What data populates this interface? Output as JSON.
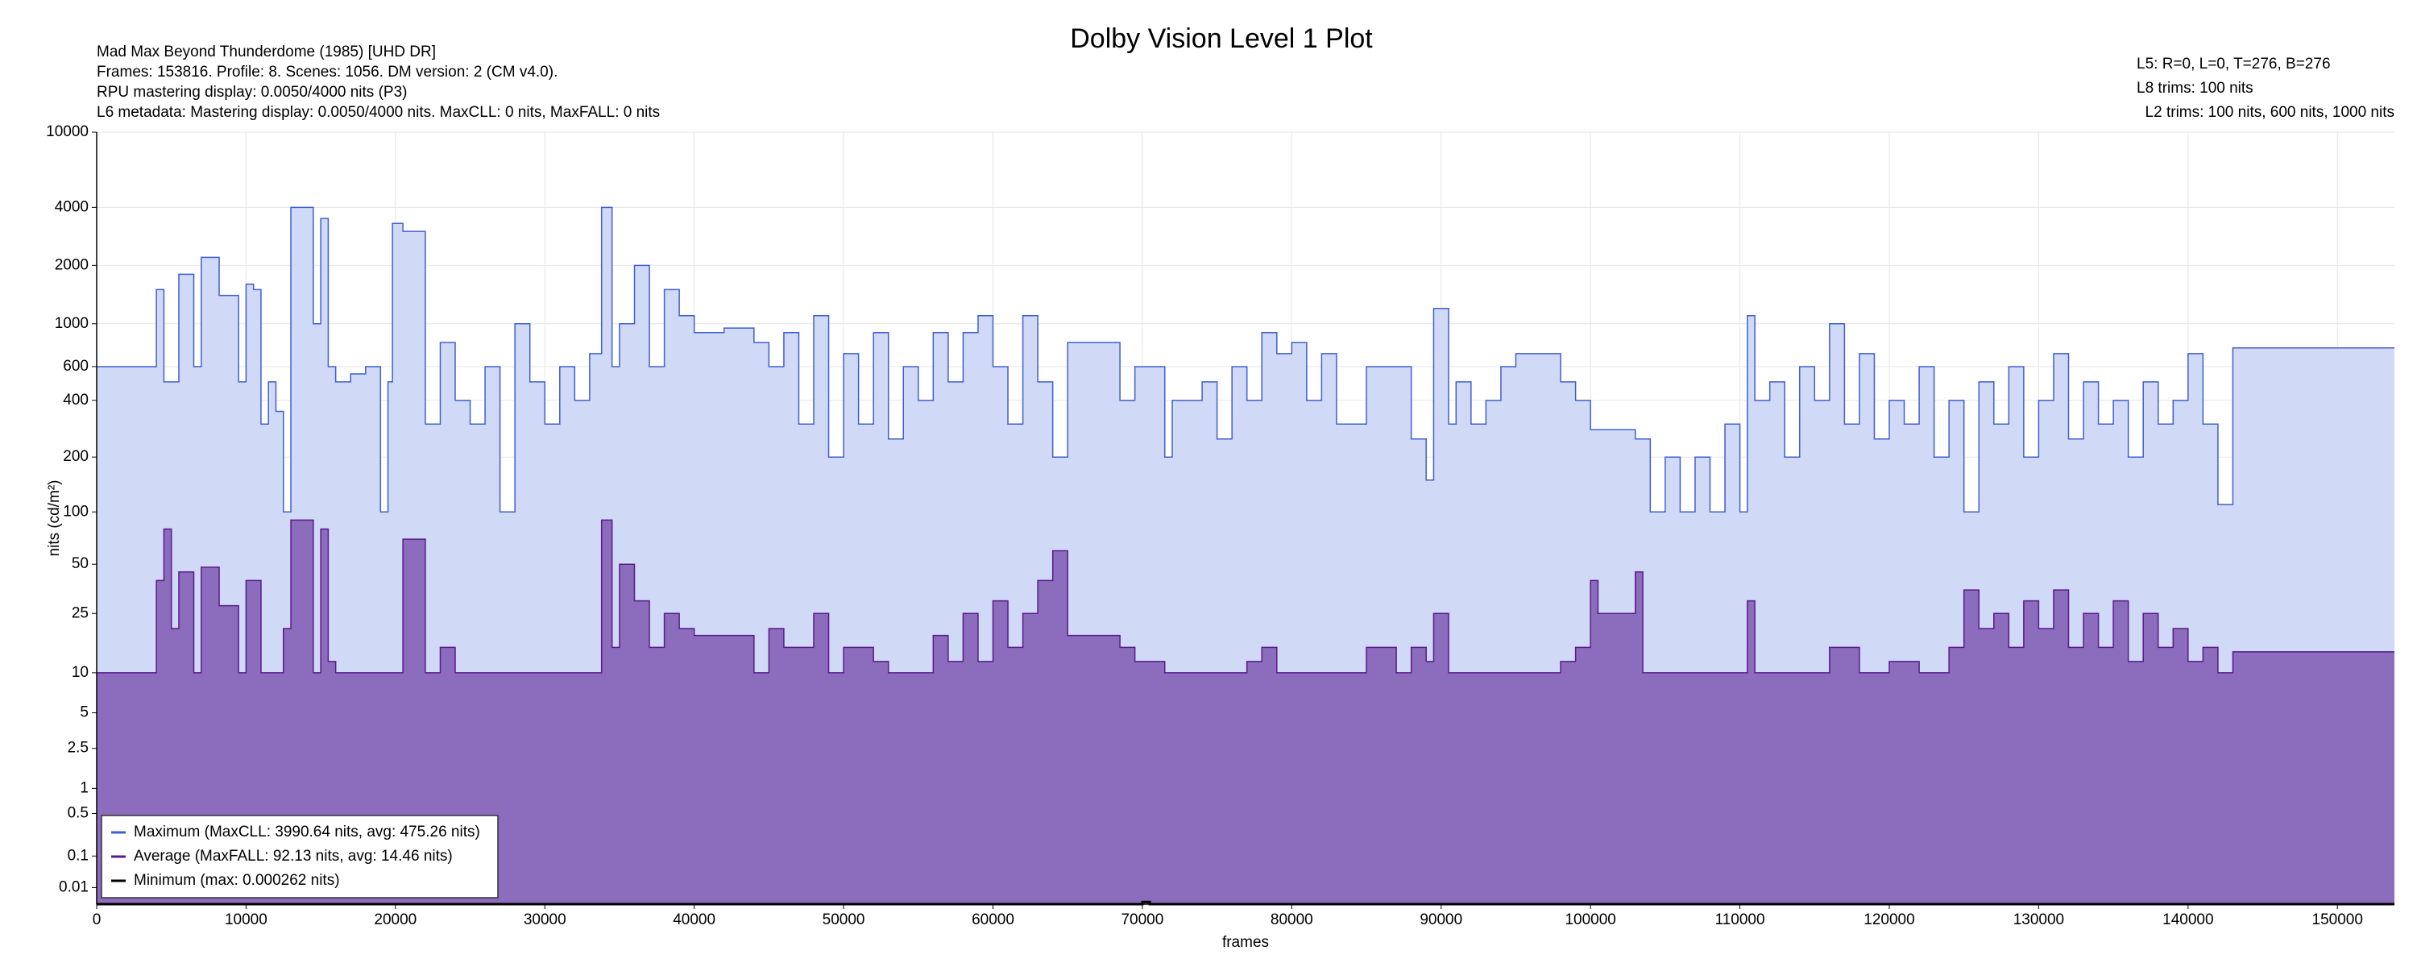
{
  "chart_data": {
    "type": "step-area",
    "title": "Dolby Vision Level 1 Plot",
    "info_left": [
      "Mad Max Beyond Thunderdome (1985) [UHD DR]",
      "Frames: 153816. Profile: 8. Scenes: 1056. DM version: 2 (CM v4.0).",
      "RPU mastering display: 0.0050/4000 nits  (P3)",
      "L6 metadata: Mastering display: 0.0050/4000 nits. MaxCLL: 0 nits, MaxFALL: 0 nits"
    ],
    "info_right": [
      "L5: R=0, L=0, T=276, B=276",
      "L8 trims: 100 nits",
      "L2 trims: 100 nits, 600 nits, 1000 nits"
    ],
    "x_label": "frames",
    "y_label": "nits (cd/m²)",
    "yscale": "pq",
    "grid": true,
    "legend": "lower left",
    "xlim": [
      0,
      153816
    ],
    "ylim": [
      0,
      10000
    ],
    "xticks": [
      0,
      10000,
      20000,
      30000,
      40000,
      50000,
      60000,
      70000,
      80000,
      90000,
      100000,
      110000,
      120000,
      130000,
      140000,
      150000
    ],
    "yticks": [
      0.01,
      0.1,
      0.5,
      1,
      2.5,
      5,
      10,
      25,
      50,
      100,
      200,
      400,
      600,
      1000,
      2000,
      4000,
      10000
    ],
    "series": [
      {
        "name": "Maximum (MaxCLL: 3990.64 nits, avg: 475.26 nits)",
        "color": "#3f5fd0",
        "fill": "#d0d9f6",
        "x": [
          0,
          4000,
          4500,
          5500,
          6500,
          7000,
          8200,
          9500,
          10000,
          10500,
          11000,
          11500,
          12000,
          12500,
          13000,
          14500,
          15000,
          15500,
          16000,
          17000,
          18000,
          19000,
          19500,
          19800,
          20500,
          22000,
          23000,
          24000,
          25000,
          26000,
          27000,
          28000,
          29000,
          30000,
          31000,
          32000,
          33000,
          33800,
          34500,
          35000,
          36000,
          37000,
          38000,
          39000,
          40000,
          42000,
          44000,
          45000,
          46000,
          47000,
          48000,
          49000,
          50000,
          51000,
          52000,
          53000,
          54000,
          55000,
          56000,
          57000,
          58000,
          59000,
          60000,
          61000,
          62000,
          63000,
          64000,
          65000,
          68500,
          69500,
          71500,
          72000,
          74000,
          75000,
          76000,
          77000,
          78000,
          79000,
          80000,
          81000,
          82000,
          83000,
          85000,
          88000,
          89000,
          89500,
          90500,
          91000,
          92000,
          93000,
          94000,
          95000,
          98000,
          99000,
          100000,
          103000,
          104000,
          105000,
          106000,
          107000,
          108000,
          109000,
          110000,
          110500,
          111000,
          112000,
          113000,
          114000,
          115000,
          116000,
          117000,
          118000,
          119000,
          120000,
          121000,
          122000,
          123000,
          124000,
          125000,
          126000,
          127000,
          128000,
          129000,
          130000,
          131000,
          132000,
          133000,
          134000,
          135000,
          136000,
          137000,
          138000,
          139000,
          140000,
          141000,
          142000,
          143000
        ],
        "values": [
          600,
          1500,
          500,
          1800,
          600,
          2200,
          1400,
          500,
          1600,
          1500,
          300,
          500,
          350,
          100,
          4000,
          1000,
          3500,
          600,
          500,
          550,
          600,
          100,
          500,
          3300,
          3000,
          300,
          800,
          400,
          300,
          600,
          100,
          1000,
          500,
          300,
          600,
          400,
          700,
          4000,
          600,
          1000,
          2000,
          600,
          1500,
          1100,
          900,
          950,
          800,
          600,
          900,
          300,
          1100,
          200,
          700,
          300,
          900,
          250,
          600,
          400,
          900,
          500,
          900,
          1100,
          600,
          300,
          1100,
          500,
          200,
          800,
          400,
          600,
          200,
          400,
          500,
          250,
          600,
          400,
          900,
          700,
          800,
          400,
          700,
          300,
          600,
          250,
          150,
          1200,
          300,
          500,
          300,
          400,
          600,
          700,
          500,
          400,
          280,
          250,
          100,
          200,
          100,
          200,
          100,
          300,
          100,
          1100,
          400,
          500,
          200,
          600,
          400,
          1000,
          300,
          700,
          250,
          400,
          300,
          600,
          200,
          400,
          100,
          500,
          300,
          600,
          200,
          400,
          700,
          250,
          500,
          300,
          400,
          200,
          500,
          300,
          400,
          700,
          300,
          110,
          750
        ]
      },
      {
        "name": "Average (MaxFALL: 92.13 nits, avg: 14.46 nits)",
        "color": "#5a1a8c",
        "fill": "#8c6cbc",
        "x": [
          0,
          4000,
          4500,
          5000,
          5500,
          6500,
          7000,
          8200,
          9500,
          10000,
          11000,
          12500,
          13000,
          14500,
          15000,
          15500,
          16000,
          20500,
          22000,
          23000,
          24000,
          33800,
          34500,
          35000,
          36000,
          37000,
          38000,
          39000,
          40000,
          42000,
          44000,
          45000,
          46000,
          48000,
          49000,
          50000,
          52000,
          53000,
          56000,
          57000,
          58000,
          59000,
          60000,
          61000,
          62000,
          63000,
          64000,
          65000,
          68500,
          69500,
          71500,
          77000,
          78000,
          79000,
          85000,
          87000,
          88000,
          89000,
          89500,
          90500,
          98000,
          99000,
          100000,
          100500,
          103000,
          103500,
          110500,
          111000,
          116000,
          118000,
          120000,
          122000,
          124000,
          125000,
          126000,
          127000,
          128000,
          129000,
          130000,
          131000,
          132000,
          133000,
          134000,
          135000,
          136000,
          137000,
          138000,
          139000,
          140000,
          141000,
          142000,
          143000
        ],
        "values": [
          10,
          40,
          80,
          20,
          45,
          10,
          48,
          28,
          10,
          40,
          10,
          20,
          90,
          10,
          80,
          12,
          10,
          70,
          10,
          15,
          10,
          90,
          15,
          50,
          30,
          15,
          25,
          20,
          18,
          18,
          10,
          20,
          15,
          25,
          10,
          15,
          12,
          10,
          18,
          12,
          25,
          12,
          30,
          15,
          25,
          40,
          60,
          18,
          15,
          12,
          10,
          12,
          15,
          10,
          15,
          10,
          15,
          12,
          25,
          10,
          12,
          15,
          40,
          25,
          45,
          10,
          30,
          10,
          15,
          10,
          12,
          10,
          15,
          35,
          20,
          25,
          15,
          30,
          20,
          35,
          15,
          25,
          15,
          30,
          12,
          25,
          15,
          20,
          12,
          15,
          10,
          14
        ]
      },
      {
        "name": "Minimum (max: 0.000262 nits)",
        "color": "#000000",
        "x": [
          0,
          70000,
          70500
        ],
        "values": [
          0,
          0.000262,
          0
        ]
      }
    ]
  }
}
